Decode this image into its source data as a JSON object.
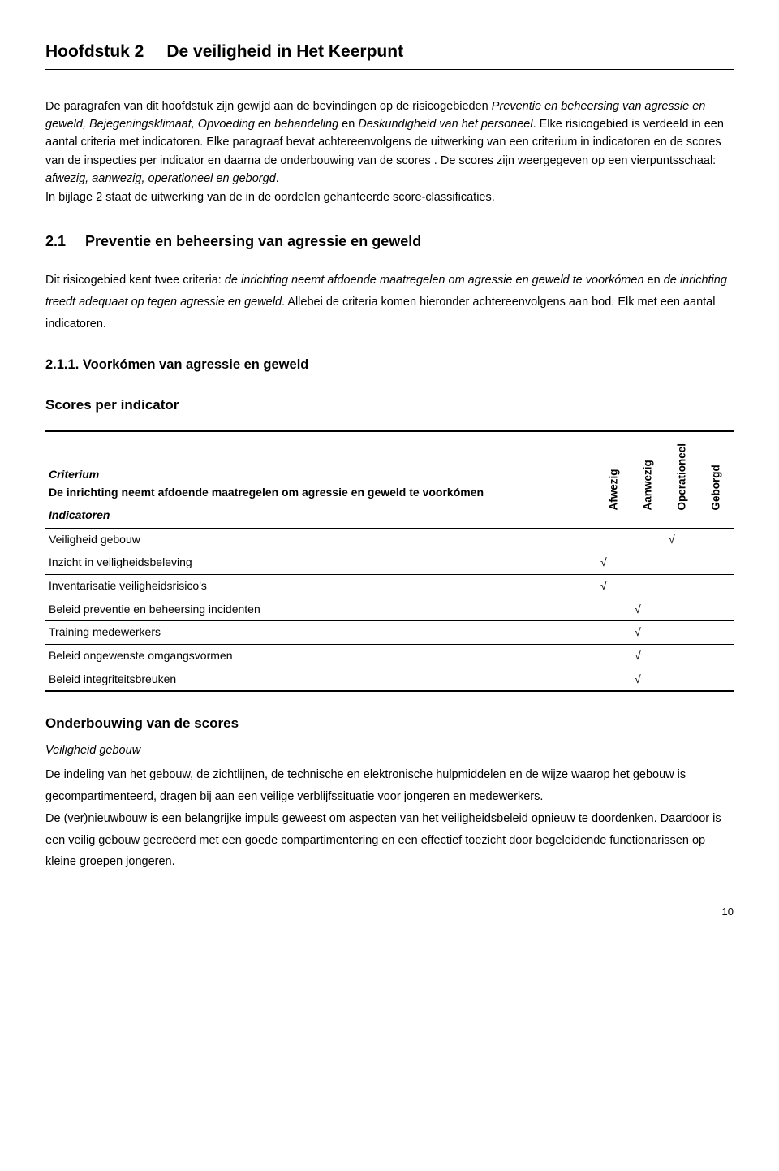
{
  "chapter": {
    "number": "Hoofdstuk 2",
    "title": "De veiligheid in Het Keerpunt"
  },
  "intro": {
    "text_parts": [
      "De paragrafen van dit hoofdstuk zijn gewijd aan de bevindingen op de risicogebieden ",
      "Preventie en beheersing van agressie en geweld, Bejegeningsklimaat, Opvoeding en behandeling",
      " en ",
      "Deskundigheid van het personeel",
      ". Elke risicogebied is verdeeld in een aantal criteria met indicatoren. Elke paragraaf bevat achtereenvolgens de uitwerking van een criterium in indicatoren en de scores van de inspecties per indicator en daarna de onderbouwing van de scores . De scores zijn weergegeven op een vierpuntsschaal: ",
      "afwezig, aanwezig, operationeel en geborgd",
      ".",
      "In bijlage 2 staat de uitwerking van de in de oordelen gehanteerde score-classificaties."
    ]
  },
  "section": {
    "number": "2.1",
    "title": "Preventie en beheersing van agressie en geweld",
    "text_parts": [
      "Dit risicogebied kent twee criteria: ",
      "de inrichting neemt afdoende maatregelen om agressie en geweld te voorkómen",
      " en ",
      "de inrichting treedt adequaat op tegen agressie en geweld",
      ". Allebei de criteria komen hieronder achtereenvolgens aan bod. Elk met een aantal indicatoren."
    ]
  },
  "subsection": {
    "number": "2.1.1.",
    "title": "Voorkómen van agressie en geweld"
  },
  "scoretable": {
    "heading": "Scores per indicator",
    "criterium_label": "Criterium",
    "criterium_text": "De inrichting neemt afdoende maatregelen om agressie en geweld te voorkómen",
    "indicatoren_label": "Indicatoren",
    "columns": [
      "Afwezig",
      "Aanwezig",
      "Operationeel",
      "Geborgd"
    ],
    "rows": [
      {
        "label": "Veiligheid gebouw",
        "marks": [
          "",
          "",
          "√",
          ""
        ]
      },
      {
        "label": "Inzicht in veiligheidsbeleving",
        "marks": [
          "√",
          "",
          "",
          ""
        ]
      },
      {
        "label": "Inventarisatie veiligheidsrisico's",
        "marks": [
          "√",
          "",
          "",
          ""
        ]
      },
      {
        "label": "Beleid preventie en beheersing incidenten",
        "marks": [
          "",
          "√",
          "",
          ""
        ]
      },
      {
        "label": "Training medewerkers",
        "marks": [
          "",
          "√",
          "",
          ""
        ]
      },
      {
        "label": "Beleid ongewenste omgangsvormen",
        "marks": [
          "",
          "√",
          "",
          ""
        ]
      },
      {
        "label": "Beleid integriteitsbreuken",
        "marks": [
          "",
          "√",
          "",
          ""
        ]
      }
    ]
  },
  "onderbouwing": {
    "heading": "Onderbouwing van de scores",
    "subhead": "Veiligheid gebouw",
    "p1": "De indeling van het gebouw, de zichtlijnen, de technische en elektronische hulpmiddelen en de wijze waarop het gebouw is gecompartimenteerd, dragen bij aan een veilige verblijfssituatie voor jongeren en medewerkers.",
    "p2": "De (ver)nieuwbouw is een belangrijke impuls geweest om aspecten van het veiligheidsbeleid opnieuw te doordenken. Daardoor is een veilig gebouw gecreëerd met een goede compartimentering en een effectief toezicht door begeleidende functionarissen op kleine groepen jongeren."
  },
  "page_number": "10"
}
